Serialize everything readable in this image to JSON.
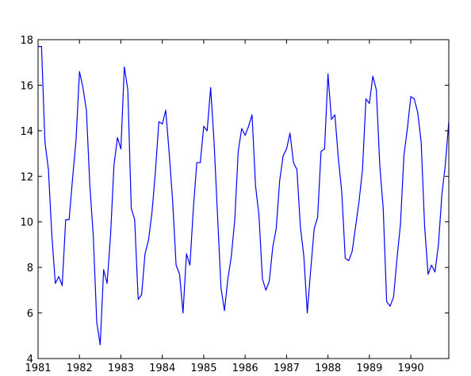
{
  "chart_data": {
    "type": "line",
    "title": "",
    "xlabel": "",
    "ylabel": "",
    "xlim": [
      1981.0,
      1990.917
    ],
    "ylim": [
      4,
      18
    ],
    "x_ticks": [
      1981,
      1982,
      1983,
      1984,
      1985,
      1986,
      1987,
      1988,
      1989,
      1990
    ],
    "x_tick_labels": [
      "1981",
      "1982",
      "1983",
      "1984",
      "1985",
      "1986",
      "1987",
      "1988",
      "1989",
      "1990"
    ],
    "y_ticks": [
      4,
      6,
      8,
      10,
      12,
      14,
      16,
      18
    ],
    "y_tick_labels": [
      "4",
      "6",
      "8",
      "10",
      "12",
      "14",
      "16",
      "18"
    ],
    "grid": false,
    "legend": "none",
    "series": [
      {
        "color": "#0000ff",
        "x": [
          1981.0,
          1981.083,
          1981.167,
          1981.25,
          1981.333,
          1981.417,
          1981.5,
          1981.583,
          1981.667,
          1981.75,
          1981.833,
          1981.917,
          1982.0,
          1982.083,
          1982.167,
          1982.25,
          1982.333,
          1982.417,
          1982.5,
          1982.583,
          1982.667,
          1982.75,
          1982.833,
          1982.917,
          1983.0,
          1983.083,
          1983.167,
          1983.25,
          1983.333,
          1983.417,
          1983.5,
          1983.583,
          1983.667,
          1983.75,
          1983.833,
          1983.917,
          1984.0,
          1984.083,
          1984.167,
          1984.25,
          1984.333,
          1984.417,
          1984.5,
          1984.583,
          1984.667,
          1984.75,
          1984.833,
          1984.917,
          1985.0,
          1985.083,
          1985.167,
          1985.25,
          1985.333,
          1985.417,
          1985.5,
          1985.583,
          1985.667,
          1985.75,
          1985.833,
          1985.917,
          1986.0,
          1986.083,
          1986.167,
          1986.25,
          1986.333,
          1986.417,
          1986.5,
          1986.583,
          1986.667,
          1986.75,
          1986.833,
          1986.917,
          1987.0,
          1987.083,
          1987.167,
          1987.25,
          1987.333,
          1987.417,
          1987.5,
          1987.583,
          1987.667,
          1987.75,
          1987.833,
          1987.917,
          1988.0,
          1988.083,
          1988.167,
          1988.25,
          1988.333,
          1988.417,
          1988.5,
          1988.583,
          1988.667,
          1988.75,
          1988.833,
          1988.917,
          1989.0,
          1989.083,
          1989.167,
          1989.25,
          1989.333,
          1989.417,
          1989.5,
          1989.583,
          1989.667,
          1989.75,
          1989.833,
          1989.917,
          1990.0,
          1990.083,
          1990.167,
          1990.25,
          1990.333,
          1990.417,
          1990.5,
          1990.583,
          1990.667,
          1990.75,
          1990.833,
          1990.917
        ],
        "y": [
          17.7,
          17.7,
          13.5,
          12.3,
          9.4,
          7.3,
          7.6,
          7.2,
          10.1,
          10.1,
          11.9,
          13.6,
          16.6,
          15.9,
          14.9,
          11.6,
          9.4,
          5.6,
          4.6,
          7.9,
          7.3,
          9.4,
          12.5,
          13.7,
          13.2,
          16.8,
          15.8,
          10.6,
          10.1,
          6.6,
          6.8,
          8.6,
          9.2,
          10.4,
          12.2,
          14.4,
          14.3,
          14.9,
          13.0,
          10.9,
          8.1,
          7.7,
          6.0,
          8.6,
          8.1,
          10.6,
          12.6,
          12.6,
          14.2,
          14.0,
          15.9,
          13.5,
          10.3,
          7.1,
          6.1,
          7.5,
          8.5,
          10.1,
          13.1,
          14.1,
          13.8,
          14.2,
          14.7,
          11.6,
          10.3,
          7.5,
          7.0,
          7.4,
          8.9,
          9.7,
          11.8,
          12.9,
          13.2,
          13.9,
          12.6,
          12.3,
          9.8,
          8.5,
          6.0,
          7.9,
          9.7,
          10.2,
          13.1,
          13.2,
          16.5,
          14.5,
          14.7,
          12.8,
          11.3,
          8.4,
          8.3,
          8.7,
          9.8,
          10.9,
          12.3,
          15.4,
          15.2,
          16.4,
          15.8,
          12.5,
          10.6,
          6.5,
          6.3,
          6.7,
          8.4,
          9.9,
          12.9,
          14.1,
          15.5,
          15.4,
          14.8,
          13.5,
          9.8,
          7.7,
          8.1,
          7.8,
          9.0,
          11.2,
          12.5,
          14.4
        ]
      }
    ]
  }
}
